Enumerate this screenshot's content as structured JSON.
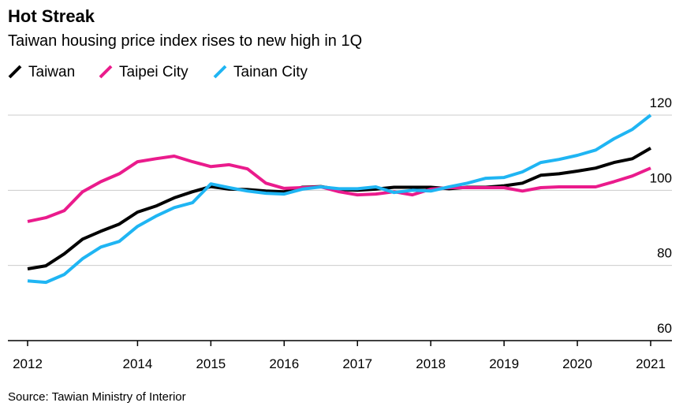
{
  "chart_data": {
    "type": "line",
    "title": "Hot Streak",
    "subtitle": "Taiwan housing price index rises to new high in 1Q",
    "source": "Source: Tawian Ministry of Interior",
    "categories": [
      "2012",
      null,
      null,
      null,
      null,
      null,
      "2014",
      null,
      null,
      null,
      "2015",
      null,
      null,
      null,
      "2016",
      null,
      null,
      null,
      "2017",
      null,
      null,
      null,
      "2018",
      null,
      null,
      null,
      "2019",
      null,
      null,
      null,
      "2020",
      null,
      null,
      null,
      "2021"
    ],
    "series": [
      {
        "name": "Taiwan",
        "color": "#000000",
        "values": [
          79.1,
          79.9,
          83.1,
          87.0,
          89.1,
          91.0,
          94.2,
          95.8,
          98.0,
          99.6,
          101.0,
          100.3,
          100.2,
          99.8,
          99.6,
          100.8,
          101.0,
          100.2,
          100.0,
          100.3,
          100.8,
          100.8,
          100.8,
          100.4,
          100.8,
          100.8,
          101.2,
          101.9,
          104.0,
          104.4,
          105.1,
          105.9,
          107.4,
          108.4,
          111.2
        ]
      },
      {
        "name": "Taipei City",
        "color": "#ea1b8c",
        "values": [
          91.7,
          92.7,
          94.6,
          99.6,
          102.3,
          104.4,
          107.6,
          108.4,
          109.1,
          107.6,
          106.3,
          106.8,
          105.7,
          101.9,
          100.5,
          100.7,
          100.9,
          99.6,
          98.8,
          99.0,
          99.6,
          98.8,
          100.3,
          100.7,
          100.7,
          100.7,
          100.7,
          99.8,
          100.7,
          100.9,
          100.9,
          100.9,
          102.3,
          103.8,
          105.9
        ]
      },
      {
        "name": "Tainan City",
        "color": "#1fb5f3",
        "values": [
          75.9,
          75.5,
          77.6,
          81.8,
          84.9,
          86.4,
          90.4,
          93.1,
          95.4,
          96.7,
          101.7,
          100.7,
          99.8,
          99.2,
          99.0,
          100.3,
          100.9,
          100.4,
          100.4,
          100.9,
          99.4,
          100.0,
          99.8,
          100.9,
          101.9,
          103.2,
          103.4,
          104.9,
          107.4,
          108.2,
          109.3,
          110.7,
          113.7,
          116.2,
          120.0
        ]
      }
    ],
    "ylim": [
      60,
      120
    ],
    "yticks": [
      60,
      80,
      100,
      120
    ],
    "grid": true
  }
}
